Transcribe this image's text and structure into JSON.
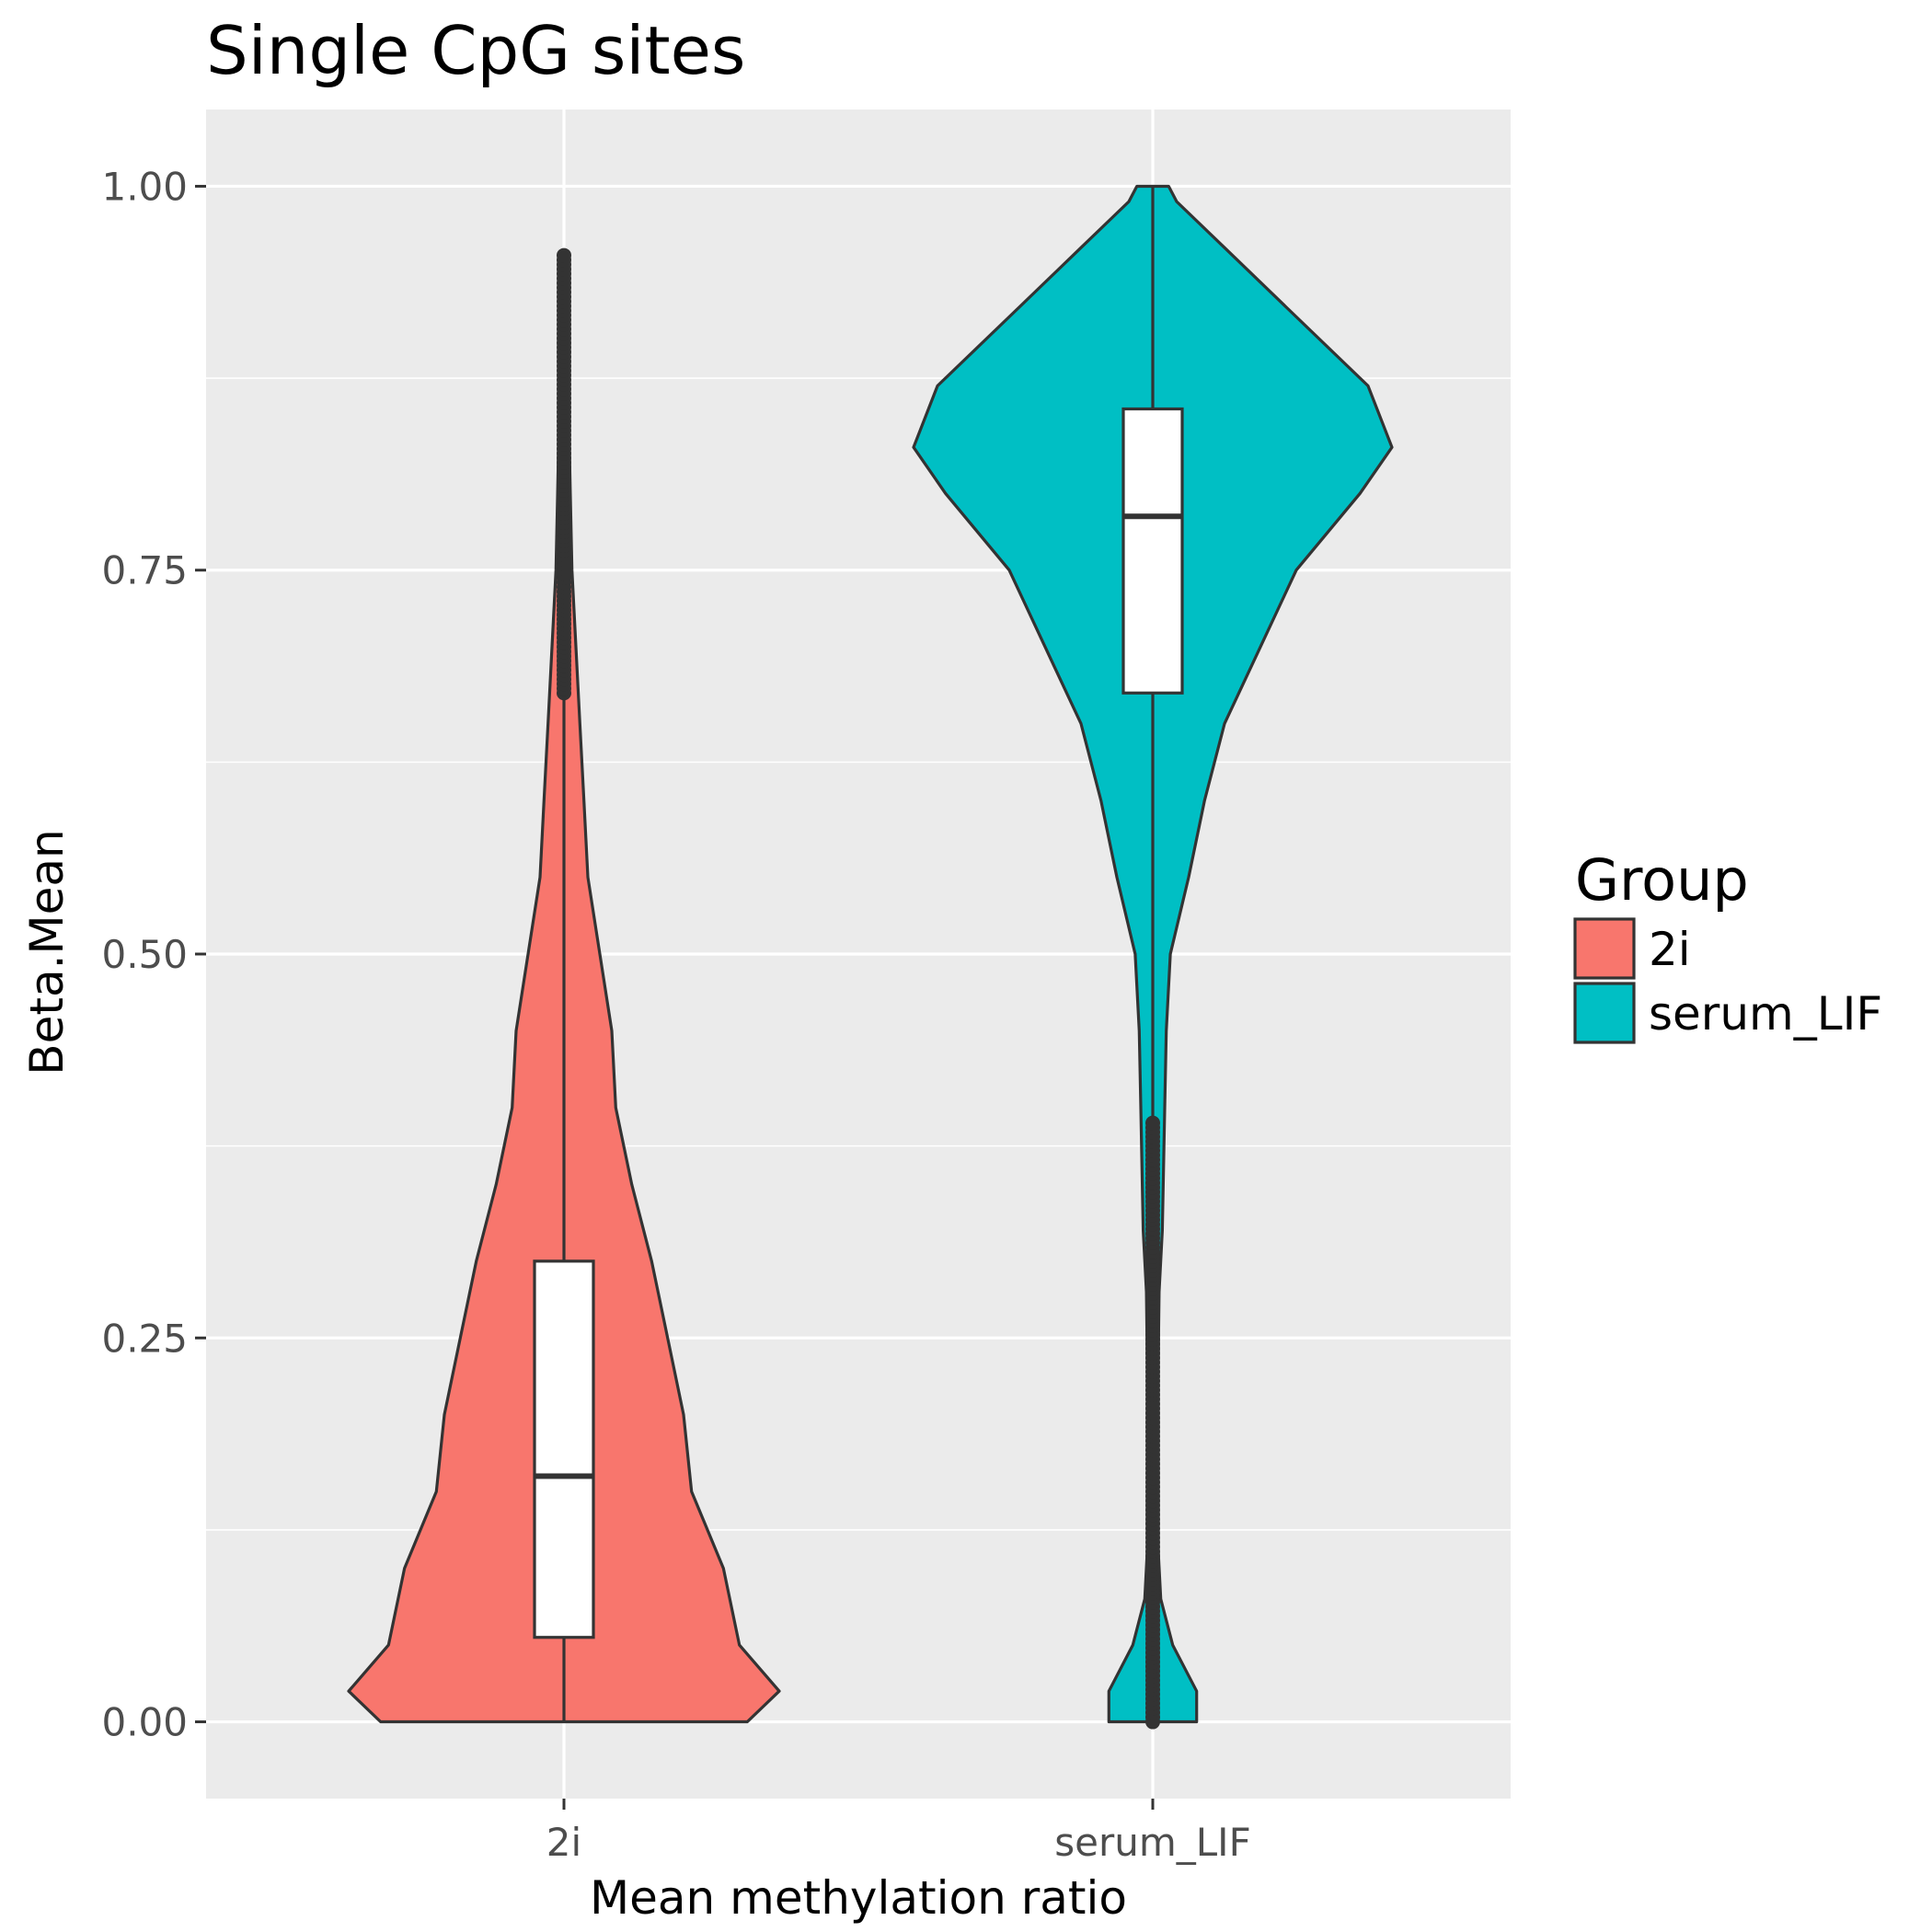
{
  "chart_data": {
    "type": "violin",
    "title": "Single CpG sites",
    "xlabel": "Mean methylation ratio",
    "ylabel": "Beta.Mean",
    "ylim": [
      -0.05,
      1.05
    ],
    "yticks": [
      "0.00",
      "0.25",
      "0.50",
      "0.75",
      "1.00"
    ],
    "ytick_values": [
      0,
      0.25,
      0.5,
      0.75,
      1.0
    ],
    "categories": [
      "2i",
      "serum_LIF"
    ],
    "grid": true,
    "legend": {
      "title": "Group",
      "placement": "right",
      "entries": [
        "2i",
        "serum_LIF"
      ]
    },
    "series": [
      {
        "name": "2i",
        "color": "#F8766D",
        "box": {
          "q1": 0.055,
          "median": 0.16,
          "q3": 0.3,
          "whisker_low": 0.0,
          "whisker_high": 0.67
        },
        "outliers_range": [
          0.67,
          0.955
        ],
        "density": [
          [
            0.0,
            0.23
          ],
          [
            0.02,
            0.27
          ],
          [
            0.05,
            0.22
          ],
          [
            0.1,
            0.2
          ],
          [
            0.15,
            0.16
          ],
          [
            0.2,
            0.15
          ],
          [
            0.25,
            0.13
          ],
          [
            0.3,
            0.11
          ],
          [
            0.35,
            0.085
          ],
          [
            0.4,
            0.065
          ],
          [
            0.45,
            0.06
          ],
          [
            0.5,
            0.045
          ],
          [
            0.55,
            0.03
          ],
          [
            0.6,
            0.025
          ],
          [
            0.65,
            0.02
          ],
          [
            0.7,
            0.015
          ],
          [
            0.75,
            0.01
          ],
          [
            0.8,
            0.008
          ],
          [
            0.85,
            0.006
          ],
          [
            0.9,
            0.004
          ],
          [
            0.95,
            0.002
          ]
        ]
      },
      {
        "name": "serum_LIF",
        "color": "#00BFC4",
        "box": {
          "q1": 0.67,
          "median": 0.785,
          "q3": 0.855,
          "whisker_low": 0.39,
          "whisker_high": 1.0
        },
        "outliers_range": [
          0.0,
          0.39
        ],
        "density": [
          [
            0.0,
            0.055
          ],
          [
            0.02,
            0.055
          ],
          [
            0.05,
            0.025
          ],
          [
            0.08,
            0.01
          ],
          [
            0.12,
            0.006
          ],
          [
            0.2,
            0.006
          ],
          [
            0.28,
            0.008
          ],
          [
            0.32,
            0.012
          ],
          [
            0.4,
            0.015
          ],
          [
            0.45,
            0.017
          ],
          [
            0.5,
            0.022
          ],
          [
            0.55,
            0.045
          ],
          [
            0.6,
            0.065
          ],
          [
            0.65,
            0.09
          ],
          [
            0.7,
            0.135
          ],
          [
            0.75,
            0.18
          ],
          [
            0.8,
            0.26
          ],
          [
            0.83,
            0.3
          ],
          [
            0.87,
            0.27
          ],
          [
            0.92,
            0.17
          ],
          [
            0.96,
            0.09
          ],
          [
            0.99,
            0.03
          ],
          [
            1.0,
            0.02
          ]
        ]
      }
    ]
  }
}
